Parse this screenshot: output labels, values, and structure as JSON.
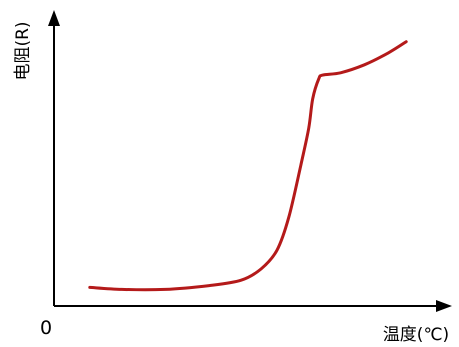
{
  "chart_data": {
    "type": "line",
    "ylabel": "电阻(R)",
    "xlabel": "温度(℃)",
    "origin_label": "0",
    "xlim": [
      0,
      100
    ],
    "ylim": [
      0,
      100
    ],
    "grid": false,
    "series": [
      {
        "color": "#b41a1a",
        "x": [
          9,
          17,
          28,
          39,
          47,
          52,
          56,
          59,
          62,
          64,
          65,
          66.5,
          67.5,
          72,
          78,
          84,
          88.5
        ],
        "y": [
          6.3,
          5.6,
          5.6,
          6.9,
          8.7,
          12.5,
          18.8,
          30,
          47.5,
          60,
          70,
          76.7,
          78,
          78.8,
          81.5,
          85.5,
          89.3
        ]
      }
    ]
  }
}
